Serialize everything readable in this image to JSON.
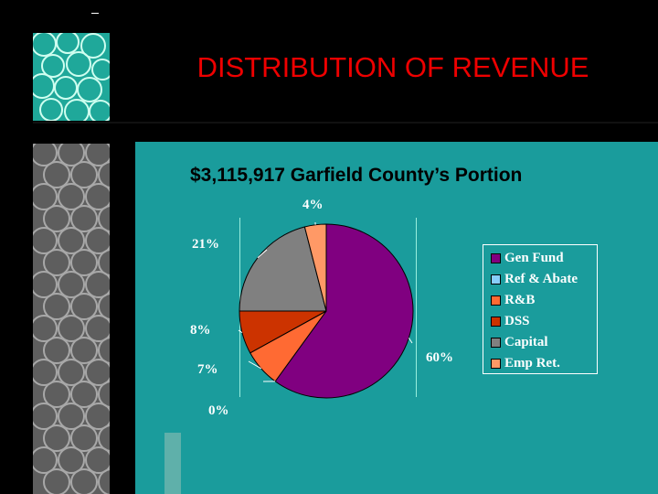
{
  "slide": {
    "title": "DISTRIBUTION OF REVENUE",
    "subtitle": "$3,115,917 Garfield County’s Portion"
  },
  "colors": {
    "background": "#000000",
    "panel": "#1a9c9c",
    "title": "#ee0000"
  },
  "chart_data": {
    "type": "pie",
    "title": "$3,115,917 Garfield County’s Portion",
    "legend_position": "right",
    "series": [
      {
        "name": "Gen Fund",
        "value": 60,
        "label": "60%",
        "color": "#800080"
      },
      {
        "name": "Ref & Abate",
        "value": 0,
        "label": "0%",
        "color": "#87cefa"
      },
      {
        "name": "R&B",
        "value": 7,
        "label": "7%",
        "color": "#ff6a33"
      },
      {
        "name": "DSS",
        "value": 8,
        "label": "8%",
        "color": "#cc3300"
      },
      {
        "name": "Capital",
        "value": 21,
        "label": "21%",
        "color": "#808080"
      },
      {
        "name": "Emp Ret.",
        "value": 4,
        "label": "4%",
        "color": "#ff9966"
      }
    ]
  }
}
